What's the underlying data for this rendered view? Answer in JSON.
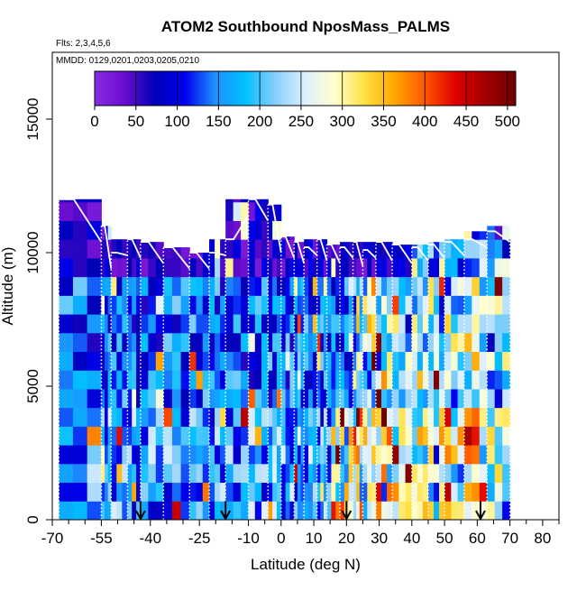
{
  "chart_data": {
    "type": "heatmap",
    "title": "ATOM2 Southbound NposMass_PALMS",
    "flights_note": "Flts: 2,3,4,5,6",
    "dates_note": "MMDD: 0129,0201,0203,0205,0210",
    "xlabel": "Latitude (deg N)",
    "ylabel": "Altitude (m)",
    "xlim": [
      -70,
      85
    ],
    "ylim": [
      0,
      17500
    ],
    "x_ticks": [
      -70,
      -55,
      -40,
      -25,
      -10,
      0,
      10,
      20,
      30,
      40,
      50,
      60,
      70,
      80
    ],
    "x_minor_ticks": [
      -65,
      -60,
      -50,
      -45,
      -35,
      -30,
      -20,
      -15,
      -5,
      5,
      15,
      25,
      35,
      45,
      55,
      65,
      75,
      85
    ],
    "y_ticks": [
      0,
      5000,
      10000,
      15000
    ],
    "colorbar": {
      "ticks": [
        0,
        50,
        100,
        150,
        200,
        250,
        300,
        350,
        400,
        450,
        500
      ],
      "range": [
        0,
        510
      ],
      "stops": [
        "#8a2be2",
        "#6a0dd0",
        "#0000b8",
        "#0000ee",
        "#1e90ff",
        "#00bfff",
        "#87cefa",
        "#dff0ff",
        "#ffffcc",
        "#ffe040",
        "#ffa500",
        "#ff5500",
        "#e00000",
        "#a00000",
        "#700000"
      ]
    },
    "profile_latitudes": [
      -68,
      -55,
      -52,
      -47,
      -43,
      -36,
      -28,
      -22,
      -17,
      -10,
      -4,
      0,
      4,
      7,
      11,
      14,
      18,
      22,
      25,
      29,
      34,
      40,
      45,
      50,
      56,
      63,
      70
    ],
    "top_altitudes": [
      12000,
      11000,
      10000,
      10500,
      10400,
      10200,
      10000,
      10000,
      10500,
      12000,
      11800,
      10600,
      10400,
      10200,
      10500,
      10300,
      10200,
      10400,
      10100,
      10400,
      10300,
      10200,
      10300,
      10400,
      10500,
      10800,
      11000
    ],
    "arrow_latitudes": [
      -43,
      -17,
      20,
      61
    ]
  }
}
